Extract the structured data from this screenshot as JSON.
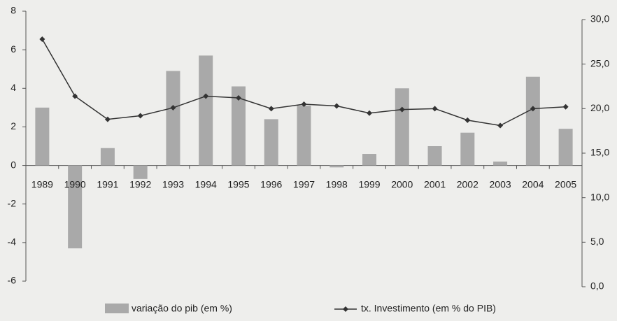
{
  "chart_data": {
    "type": "bar-line",
    "categories": [
      "1989",
      "1990",
      "1991",
      "1992",
      "1993",
      "1994",
      "1995",
      "1996",
      "1997",
      "1998",
      "1999",
      "2000",
      "2001",
      "2002",
      "2003",
      "2004",
      "2005"
    ],
    "series": [
      {
        "name": "variação do pib (em %)",
        "type": "bar",
        "color": "#a9a9a9",
        "axis": "y",
        "values": [
          3.0,
          -4.3,
          0.9,
          -0.7,
          4.9,
          5.7,
          4.1,
          2.4,
          3.1,
          -0.1,
          0.6,
          4.0,
          1.0,
          1.7,
          0.2,
          4.6,
          1.9
        ]
      },
      {
        "name": "tx. Investimento (em % do PIB)",
        "type": "line",
        "color": "#333333",
        "axis": "y2",
        "values": [
          27.8,
          21.4,
          18.8,
          19.2,
          20.1,
          21.4,
          21.2,
          20.0,
          20.5,
          20.3,
          19.5,
          19.9,
          20.0,
          18.7,
          18.1,
          20.0,
          20.2
        ]
      }
    ],
    "ylim": [
      -6,
      8
    ],
    "yticks": [
      -6,
      -4,
      -2,
      0,
      2,
      4,
      6,
      8
    ],
    "y2lim": [
      0,
      30
    ],
    "y2ticks": [
      {
        "value": 0,
        "label": "0,0"
      },
      {
        "value": 5,
        "label": "5,0"
      },
      {
        "value": 10,
        "label": "10,0"
      },
      {
        "value": 15,
        "label": "15,0"
      },
      {
        "value": 20,
        "label": "20,0"
      },
      {
        "value": 25,
        "label": "25,0"
      },
      {
        "value": 30,
        "label": "30,0"
      }
    ],
    "grid": false,
    "legend": "bottom"
  }
}
